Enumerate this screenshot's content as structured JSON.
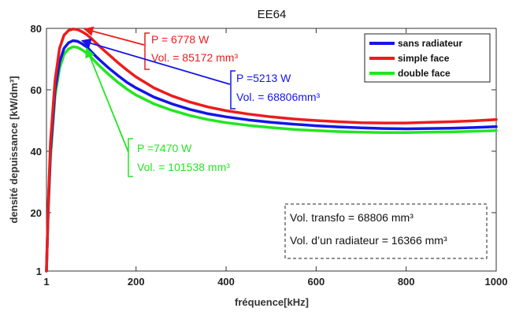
{
  "chart_data": {
    "type": "line",
    "title": "EE64",
    "xlabel": "fréquence[kHz]",
    "ylabel": "densité depuissance [kW/dm³]",
    "xlim": [
      1,
      1000
    ],
    "ylim": [
      1,
      80
    ],
    "xticks": [
      1,
      200,
      400,
      600,
      800,
      1000
    ],
    "yticks": [
      1,
      20,
      40,
      60,
      80
    ],
    "x": [
      1,
      5,
      10,
      20,
      30,
      40,
      50,
      60,
      70,
      80,
      90,
      100,
      110,
      120,
      140,
      160,
      180,
      200,
      240,
      280,
      320,
      360,
      400,
      450,
      500,
      550,
      600,
      650,
      700,
      750,
      800,
      850,
      900,
      950,
      1000
    ],
    "series": [
      {
        "name": "sans radiateur",
        "color": "#1515e8",
        "values": [
          1,
          22,
          40,
          60,
          69,
          73.5,
          75.3,
          76,
          75.8,
          75,
          74,
          72.5,
          71,
          69.6,
          67,
          64.6,
          62.4,
          60.6,
          57.6,
          55.4,
          53.6,
          52.2,
          51.2,
          50.2,
          49.4,
          48.8,
          48.3,
          47.9,
          47.6,
          47.4,
          47.3,
          47.4,
          47.5,
          47.7,
          48
        ]
      },
      {
        "name": "simple face",
        "color": "#ec1c1c",
        "values": [
          1,
          23,
          43,
          63,
          73.5,
          77.8,
          79.3,
          79.8,
          79.6,
          78.9,
          78,
          76.8,
          75.4,
          74,
          71.4,
          68.8,
          66.4,
          64.2,
          60.6,
          58,
          56,
          54.4,
          53.2,
          52.1,
          51.2,
          50.5,
          50,
          49.6,
          49.3,
          49.2,
          49.2,
          49.4,
          49.6,
          49.9,
          50.3
        ]
      },
      {
        "name": "double face",
        "color": "#22e622",
        "values": [
          1,
          21,
          38,
          58,
          67,
          71.5,
          73.3,
          74,
          73.8,
          73,
          72,
          70.6,
          69.1,
          67.6,
          64.9,
          62.4,
          60.2,
          58.3,
          55.4,
          53.3,
          51.6,
          50.3,
          49.3,
          48.4,
          47.7,
          47.1,
          46.7,
          46.4,
          46.2,
          46.1,
          46.1,
          46.2,
          46.3,
          46.5,
          46.7
        ]
      }
    ],
    "legend_position": "top-right",
    "grid": false,
    "annotations": [
      {
        "color": "#ec1c1c",
        "point_x": 85,
        "point_y": 79.8,
        "lines": [
          "P = 6778 W",
          "Vol. = 85172 mm³"
        ]
      },
      {
        "color": "#1515e8",
        "point_x": 80,
        "point_y": 76,
        "lines": [
          "P =5213 W",
          "Vol. = 68806mm³"
        ]
      },
      {
        "color": "#22e622",
        "point_x": 90,
        "point_y": 73.5,
        "lines": [
          "P =7470 W",
          "Vol. = 101538 mm³"
        ]
      }
    ],
    "note": [
      "Vol. transfo = 68806 mm³",
      "Vol. d’un radiateur = 16366 mm³"
    ]
  }
}
